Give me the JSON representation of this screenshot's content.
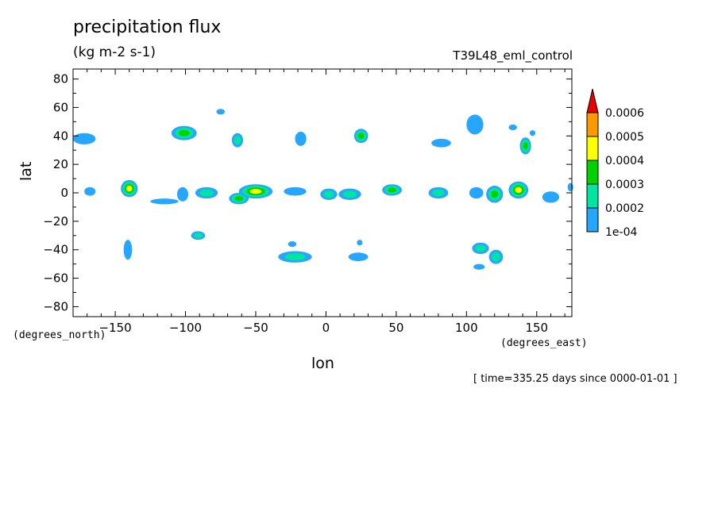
{
  "chart_data": {
    "type": "contour",
    "title": "precipitation flux",
    "units": "(kg m-2 s-1)",
    "run_name": "T39L48_eml_control",
    "xlabel": "lon",
    "ylabel": "lat",
    "x_unit_label": "(degrees_east)",
    "y_unit_label": "(degrees_north)",
    "xlim": [
      -180,
      175
    ],
    "ylim": [
      -87,
      87
    ],
    "x_ticks": [
      -150,
      -100,
      -50,
      0,
      50,
      100,
      150
    ],
    "x_tick_labels": [
      "−150",
      "−100",
      "−50",
      "0",
      "50",
      "100",
      "150"
    ],
    "y_ticks": [
      -80,
      -60,
      -40,
      -20,
      0,
      20,
      40,
      60,
      80
    ],
    "y_tick_labels": [
      "−80",
      "−60",
      "−40",
      "−20",
      "0",
      "20",
      "40",
      "60",
      "80"
    ],
    "timestamp": "[ time=335.25 days since 0000-01-01 ]",
    "levels": [
      0.0001,
      0.0002,
      0.0003,
      0.0004,
      0.0005,
      0.0006
    ],
    "level_labels": [
      "1e-04",
      "0.0002",
      "0.0003",
      "0.0004",
      "0.0005",
      "0.0006"
    ],
    "colors": [
      "#26a6ff",
      "#00e6a0",
      "#00d200",
      "#ffff00",
      "#ff9900",
      "#e60000"
    ],
    "features": [
      {
        "lon": -172,
        "lat": 38,
        "rlon": 8,
        "rlat": 4,
        "level": 1
      },
      {
        "lon": -101,
        "lat": 42,
        "rlon": 9,
        "rlat": 5,
        "level": 3
      },
      {
        "lon": -63,
        "lat": 37,
        "rlon": 4,
        "rlat": 5,
        "level": 2
      },
      {
        "lon": -75,
        "lat": 57,
        "rlon": 3,
        "rlat": 2,
        "level": 1
      },
      {
        "lon": -18,
        "lat": 38,
        "rlon": 4,
        "rlat": 5,
        "level": 1
      },
      {
        "lon": 25,
        "lat": 40,
        "rlon": 5,
        "rlat": 5,
        "level": 3
      },
      {
        "lon": 82,
        "lat": 35,
        "rlon": 7,
        "rlat": 3,
        "level": 1
      },
      {
        "lon": 106,
        "lat": 48,
        "rlon": 6,
        "rlat": 7,
        "level": 1
      },
      {
        "lon": 142,
        "lat": 33,
        "rlon": 4,
        "rlat": 6,
        "level": 3
      },
      {
        "lon": -168,
        "lat": 1,
        "rlon": 4,
        "rlat": 3,
        "level": 1
      },
      {
        "lon": -140,
        "lat": 3,
        "rlon": 6,
        "rlat": 6,
        "level": 4
      },
      {
        "lon": -115,
        "lat": -6,
        "rlon": 10,
        "rlat": 2,
        "level": 1
      },
      {
        "lon": -102,
        "lat": -1,
        "rlon": 4,
        "rlat": 5,
        "level": 1
      },
      {
        "lon": -85,
        "lat": 0,
        "rlon": 8,
        "rlat": 4,
        "level": 2
      },
      {
        "lon": -62,
        "lat": -4,
        "rlon": 7,
        "rlat": 4,
        "level": 3
      },
      {
        "lon": -50,
        "lat": 1,
        "rlon": 12,
        "rlat": 5,
        "level": 4
      },
      {
        "lon": -22,
        "lat": 1,
        "rlon": 8,
        "rlat": 3,
        "level": 1
      },
      {
        "lon": 2,
        "lat": -1,
        "rlon": 6,
        "rlat": 4,
        "level": 2
      },
      {
        "lon": 17,
        "lat": -1,
        "rlon": 8,
        "rlat": 4,
        "level": 2
      },
      {
        "lon": 47,
        "lat": 2,
        "rlon": 7,
        "rlat": 4,
        "level": 3
      },
      {
        "lon": 80,
        "lat": 0,
        "rlon": 7,
        "rlat": 4,
        "level": 2
      },
      {
        "lon": 107,
        "lat": 0,
        "rlon": 5,
        "rlat": 4,
        "level": 1
      },
      {
        "lon": 120,
        "lat": -1,
        "rlon": 6,
        "rlat": 6,
        "level": 3
      },
      {
        "lon": 137,
        "lat": 2,
        "rlon": 7,
        "rlat": 6,
        "level": 4
      },
      {
        "lon": 160,
        "lat": -3,
        "rlon": 6,
        "rlat": 4,
        "level": 1
      },
      {
        "lon": 174,
        "lat": 4,
        "rlon": 2,
        "rlat": 3,
        "level": 1
      },
      {
        "lon": -141,
        "lat": -40,
        "rlon": 3,
        "rlat": 7,
        "level": 1
      },
      {
        "lon": -91,
        "lat": -30,
        "rlon": 5,
        "rlat": 3,
        "level": 2
      },
      {
        "lon": -22,
        "lat": -45,
        "rlon": 12,
        "rlat": 4,
        "level": 2
      },
      {
        "lon": -24,
        "lat": -36,
        "rlon": 3,
        "rlat": 2,
        "level": 1
      },
      {
        "lon": 23,
        "lat": -45,
        "rlon": 7,
        "rlat": 3,
        "level": 1
      },
      {
        "lon": 24,
        "lat": -35,
        "rlon": 2,
        "rlat": 2,
        "level": 1
      },
      {
        "lon": 110,
        "lat": -39,
        "rlon": 6,
        "rlat": 4,
        "level": 2
      },
      {
        "lon": 121,
        "lat": -45,
        "rlon": 5,
        "rlat": 5,
        "level": 2
      },
      {
        "lon": 109,
        "lat": -52,
        "rlon": 4,
        "rlat": 2,
        "level": 1
      },
      {
        "lon": 133,
        "lat": 46,
        "rlon": 3,
        "rlat": 2,
        "level": 1
      },
      {
        "lon": 147,
        "lat": 42,
        "rlon": 2,
        "rlat": 2,
        "level": 1
      }
    ]
  }
}
